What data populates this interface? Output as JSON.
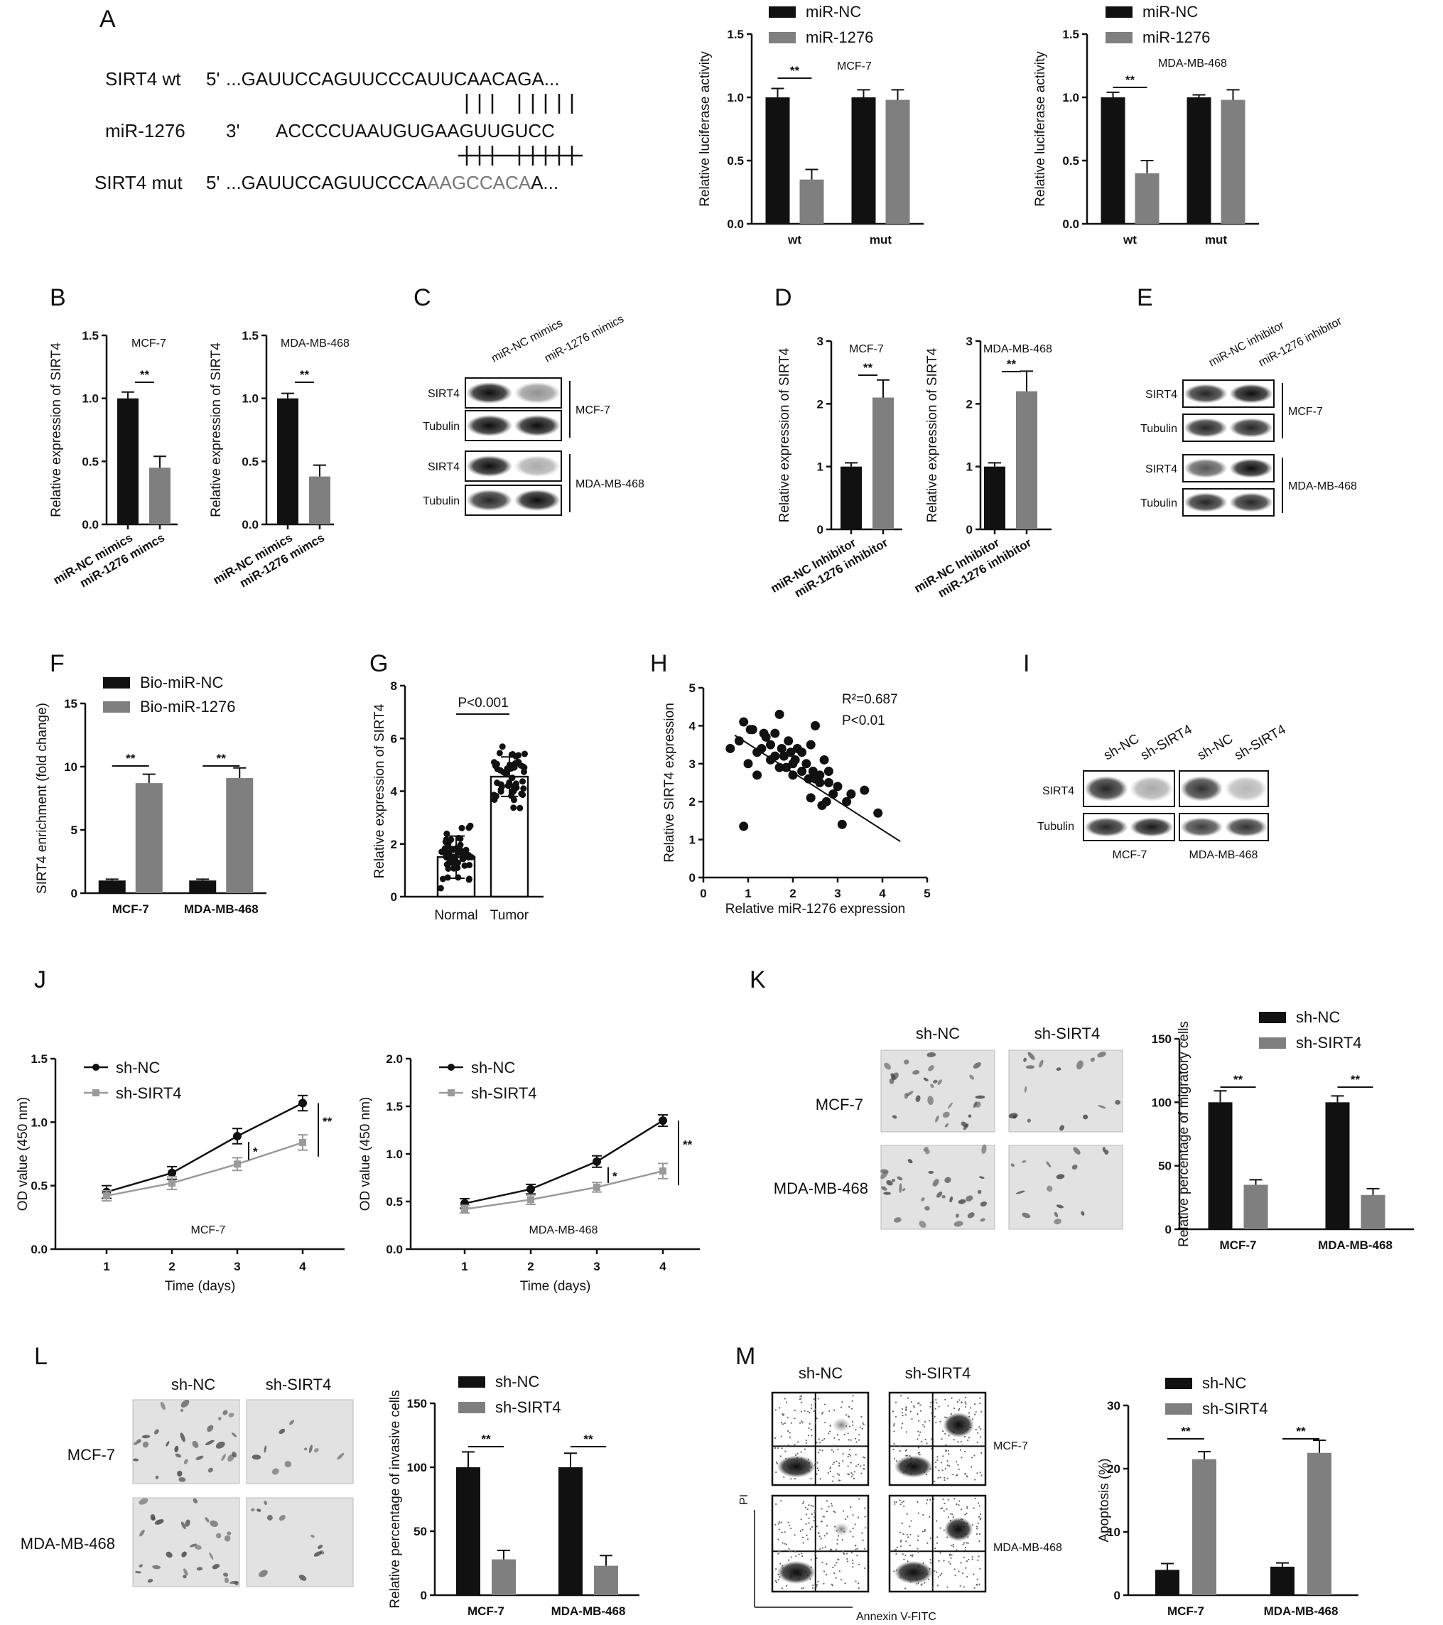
{
  "panels": {
    "A": "A",
    "B": "B",
    "C": "C",
    "D": "D",
    "E": "E",
    "F": "F",
    "G": "G",
    "H": "H",
    "I": "I",
    "J": "J",
    "K": "K",
    "L": "L",
    "M": "M"
  },
  "colors": {
    "black": "#111111",
    "gray": "#7f7f7f",
    "lightgray": "#9a9a9a"
  },
  "sequences": {
    "wt_label": "SIRT4 wt",
    "wt_prime": "5'",
    "wt_seq": "...GAUUCCAGUUCCCAUUCAACAGA...",
    "mir_label": "miR-1276",
    "mir_prime": "3'",
    "mir_seq": "ACCCCUAAUGUGAAGUUGUCC",
    "mut_label": "SIRT4 mut",
    "mut_prime": "5'",
    "mut_seq_a": "...GAUUCCAGUUCCCA",
    "mut_seq_b": "AAGCCACA",
    "mut_seq_c": "A..."
  },
  "blots": {
    "C": {
      "lanes": [
        "miR-NC mimics",
        "miR-1276 mimics"
      ],
      "rows": [
        "SIRT4",
        "Tubulin",
        "SIRT4",
        "Tubulin"
      ],
      "groups": [
        "MCF-7",
        "MDA-MB-468"
      ]
    },
    "E": {
      "lanes": [
        "miR-NC inhibitor",
        "miR-1276 inhibitor"
      ],
      "rows": [
        "SIRT4",
        "Tubulin",
        "SIRT4",
        "Tubulin"
      ],
      "groups": [
        "MCF-7",
        "MDA-MB-468"
      ]
    },
    "I": {
      "lanes": [
        "sh-NC",
        "sh-SIRT4",
        "sh-NC",
        "sh-SIRT4"
      ],
      "rows": [
        "SIRT4",
        "Tubulin"
      ],
      "groups": [
        "MCF-7",
        "MDA-MB-468"
      ]
    }
  },
  "micro": {
    "K": {
      "cols": [
        "sh-NC",
        "sh-SIRT4"
      ],
      "rows": [
        "MCF-7",
        "MDA-MB-468"
      ]
    },
    "L": {
      "cols": [
        "sh-NC",
        "sh-SIRT4"
      ],
      "rows": [
        "MCF-7",
        "MDA-MB-468"
      ]
    },
    "M": {
      "cols": [
        "sh-NC",
        "sh-SIRT4"
      ],
      "rows": [
        "MCF-7",
        "MDA-MB-468"
      ],
      "xlabel": "Annexin V-FITC",
      "ylabel": "PI"
    }
  },
  "chart_data": [
    {
      "id": "A1",
      "type": "bar",
      "categories": [
        "wt",
        "mut"
      ],
      "series": [
        {
          "name": "miR-NC",
          "values": [
            1.0,
            1.0
          ],
          "err": [
            0.07,
            0.06
          ]
        },
        {
          "name": "miR-1276",
          "values": [
            0.35,
            0.98
          ],
          "err": [
            0.08,
            0.08
          ]
        }
      ],
      "ylabel": "Relative luciferase activity",
      "ylim": [
        0,
        1.5
      ],
      "yticks": [
        "0.0",
        "0.5",
        "1.0",
        "1.5"
      ],
      "annotation": "MCF-7",
      "sig": [
        "**"
      ]
    },
    {
      "id": "A2",
      "type": "bar",
      "categories": [
        "wt",
        "mut"
      ],
      "series": [
        {
          "name": "miR-NC",
          "values": [
            1.0,
            1.0
          ],
          "err": [
            0.04,
            0.02
          ]
        },
        {
          "name": "miR-1276",
          "values": [
            0.4,
            0.98
          ],
          "err": [
            0.1,
            0.08
          ]
        }
      ],
      "ylabel": "Relative luciferase activity",
      "ylim": [
        0,
        1.5
      ],
      "yticks": [
        "0.0",
        "0.5",
        "1.0",
        "1.5"
      ],
      "annotation": "MDA-MB-468",
      "sig": [
        "**"
      ]
    },
    {
      "id": "B1",
      "type": "bar",
      "categories": [
        "miR-NC mimics",
        "miR-1276 mimcs"
      ],
      "values": [
        1.0,
        0.45
      ],
      "err": [
        0.05,
        0.09
      ],
      "ylabel": "Relative expression of SIRT4",
      "ylim": [
        0,
        1.5
      ],
      "yticks": [
        "0.0",
        "0.5",
        "1.0",
        "1.5"
      ],
      "annotation": "MCF-7",
      "sig": [
        "**"
      ]
    },
    {
      "id": "B2",
      "type": "bar",
      "categories": [
        "miR-NC mimics",
        "miR-1276 mimcs"
      ],
      "values": [
        1.0,
        0.38
      ],
      "err": [
        0.04,
        0.09
      ],
      "ylabel": "Relative expression of SIRT4",
      "ylim": [
        0,
        1.5
      ],
      "yticks": [
        "0.0",
        "0.5",
        "1.0",
        "1.5"
      ],
      "annotation": "MDA-MB-468",
      "sig": [
        "**"
      ]
    },
    {
      "id": "D1",
      "type": "bar",
      "categories": [
        "miR-NC Inhibitor",
        "miR-1276 inhibitor"
      ],
      "values": [
        1.0,
        2.1
      ],
      "err": [
        0.06,
        0.28
      ],
      "ylabel": "Relative expression of SIRT4",
      "ylim": [
        0,
        3
      ],
      "yticks": [
        "0",
        "1",
        "2",
        "3"
      ],
      "annotation": "MCF-7",
      "sig": [
        "**"
      ]
    },
    {
      "id": "D2",
      "type": "bar",
      "categories": [
        "miR-NC Inhibitor",
        "miR-1276 inhibitor"
      ],
      "values": [
        1.0,
        2.2
      ],
      "err": [
        0.06,
        0.32
      ],
      "ylabel": "Relative expression of SIRT4",
      "ylim": [
        0,
        3
      ],
      "yticks": [
        "0",
        "1",
        "2",
        "3"
      ],
      "annotation": "MDA-MB-468",
      "sig": [
        "**"
      ]
    },
    {
      "id": "F",
      "type": "bar",
      "categories": [
        "MCF-7",
        "MDA-MB-468"
      ],
      "series": [
        {
          "name": "Bio-miR-NC",
          "values": [
            1.0,
            1.0
          ],
          "err": [
            0.1,
            0.1
          ]
        },
        {
          "name": "Bio-miR-1276",
          "values": [
            8.7,
            9.1
          ],
          "err": [
            0.7,
            0.8
          ]
        }
      ],
      "ylabel": "SIRT4 enrichment (fold change)",
      "ylim": [
        0,
        15
      ],
      "yticks": [
        "0",
        "5",
        "10",
        "15"
      ],
      "sig": [
        "**",
        "**"
      ]
    },
    {
      "id": "G",
      "type": "bar",
      "categories": [
        "Normal",
        "Tumor"
      ],
      "values": [
        1.5,
        4.55
      ],
      "err": [
        0.8,
        0.75
      ],
      "ylabel": "Relative expression of SIRT4",
      "ylim": [
        0,
        8
      ],
      "yticks": [
        "0",
        "2",
        "4",
        "6",
        "8"
      ],
      "annotation": "P<0.001"
    },
    {
      "id": "H",
      "type": "scatter",
      "x": [
        0.6,
        0.8,
        0.9,
        1.0,
        1.1,
        1.2,
        1.3,
        1.4,
        1.5,
        1.6,
        1.7,
        1.8,
        1.9,
        2.0,
        2.1,
        2.2,
        2.3,
        2.4,
        2.5,
        2.6,
        2.7,
        2.8,
        2.9,
        3.0,
        1.2,
        1.5,
        1.7,
        2.0,
        2.2,
        2.4,
        2.6,
        2.8,
        3.2,
        3.6,
        3.9,
        0.9,
        1.6,
        1.75,
        2.5,
        2.75,
        2.05,
        1.35,
        1.85,
        2.35,
        2.65,
        3.1,
        3.3,
        1.05,
        1.95,
        2.45
      ],
      "y": [
        3.4,
        3.6,
        4.1,
        3.0,
        3.9,
        3.3,
        3.4,
        3.7,
        3.1,
        3.8,
        4.3,
        3.2,
        3.6,
        3.0,
        3.4,
        2.8,
        3.0,
        3.5,
        4.0,
        2.7,
        3.1,
        2.5,
        2.2,
        2.4,
        2.7,
        3.5,
        2.9,
        2.7,
        3.3,
        2.1,
        2.5,
        2.8,
        2.0,
        2.3,
        1.7,
        1.35,
        3.2,
        3.4,
        2.6,
        2.0,
        3.1,
        3.8,
        2.9,
        2.6,
        1.9,
        1.4,
        2.2,
        3.9,
        3.3,
        2.8
      ],
      "fit": [
        [
          0.7,
          3.75
        ],
        [
          4.4,
          0.95
        ]
      ],
      "xlabel": "Relative miR-1276 expression",
      "ylabel": "Relative SIRT4 expression",
      "xlim": [
        0,
        5
      ],
      "ylim": [
        0,
        5
      ],
      "xticks": [
        "0",
        "1",
        "2",
        "3",
        "4",
        "5"
      ],
      "yticks": [
        "0",
        "1",
        "2",
        "3",
        "4",
        "5"
      ],
      "r2": "R²=0.687",
      "p": "P<0.01"
    },
    {
      "id": "J1",
      "type": "line",
      "x": [
        1,
        2,
        3,
        4
      ],
      "series": [
        {
          "name": "sh-NC",
          "values": [
            0.45,
            0.6,
            0.89,
            1.15
          ],
          "err": [
            0.05,
            0.05,
            0.06,
            0.06
          ]
        },
        {
          "name": "sh-SIRT4",
          "values": [
            0.42,
            0.52,
            0.67,
            0.84
          ],
          "err": [
            0.04,
            0.05,
            0.05,
            0.06
          ]
        }
      ],
      "xlabel": "Time (days)",
      "ylabel": "OD value (450 nm)",
      "ylim": [
        0,
        1.5
      ],
      "xticks": [
        "1",
        "2",
        "3",
        "4"
      ],
      "yticks": [
        "0.0",
        "0.5",
        "1.0",
        "1.5"
      ],
      "annotation": "MCF-7",
      "sig": [
        "*",
        "**"
      ]
    },
    {
      "id": "J2",
      "type": "line",
      "x": [
        1,
        2,
        3,
        4
      ],
      "series": [
        {
          "name": "sh-NC",
          "values": [
            0.48,
            0.63,
            0.92,
            1.35
          ],
          "err": [
            0.05,
            0.05,
            0.06,
            0.06
          ]
        },
        {
          "name": "sh-SIRT4",
          "values": [
            0.42,
            0.52,
            0.65,
            0.82
          ],
          "err": [
            0.04,
            0.05,
            0.05,
            0.08
          ]
        }
      ],
      "xlabel": "Time (days)",
      "ylabel": "OD value (450 nm)",
      "ylim": [
        0,
        2.0
      ],
      "xticks": [
        "1",
        "2",
        "3",
        "4"
      ],
      "yticks": [
        "0.0",
        "0.5",
        "1.0",
        "1.5",
        "2.0"
      ],
      "annotation": "MDA-MB-468",
      "sig": [
        "*",
        "**"
      ]
    },
    {
      "id": "K",
      "type": "bar",
      "categories": [
        "MCF-7",
        "MDA-MB-468"
      ],
      "series": [
        {
          "name": "sh-NC",
          "values": [
            100,
            100
          ],
          "err": [
            9,
            5
          ]
        },
        {
          "name": "sh-SIRT4",
          "values": [
            35,
            27
          ],
          "err": [
            4,
            5
          ]
        }
      ],
      "ylabel": "Relative percentage of migratory cells",
      "ylim": [
        0,
        150
      ],
      "yticks": [
        "0",
        "50",
        "100",
        "150"
      ],
      "sig": [
        "**",
        "**"
      ]
    },
    {
      "id": "L",
      "type": "bar",
      "categories": [
        "MCF-7",
        "MDA-MB-468"
      ],
      "series": [
        {
          "name": "sh-NC",
          "values": [
            100,
            100
          ],
          "err": [
            12,
            11
          ]
        },
        {
          "name": "sh-SIRT4",
          "values": [
            28,
            23
          ],
          "err": [
            7,
            8
          ]
        }
      ],
      "ylabel": "Relative percentage of invasive cells",
      "ylim": [
        0,
        150
      ],
      "yticks": [
        "0",
        "50",
        "100",
        "150"
      ],
      "sig": [
        "**",
        "**"
      ]
    },
    {
      "id": "M",
      "type": "bar",
      "categories": [
        "MCF-7",
        "MDA-MB-468"
      ],
      "series": [
        {
          "name": "sh-NC",
          "values": [
            4,
            4.5
          ],
          "err": [
            1,
            0.6
          ]
        },
        {
          "name": "sh-SIRT4",
          "values": [
            21.5,
            22.5
          ],
          "err": [
            1.2,
            2
          ]
        }
      ],
      "ylabel": "Apoptosis (%)",
      "ylim": [
        0,
        30
      ],
      "yticks": [
        "0",
        "10",
        "20",
        "30"
      ],
      "sig": [
        "**",
        "**"
      ]
    }
  ]
}
